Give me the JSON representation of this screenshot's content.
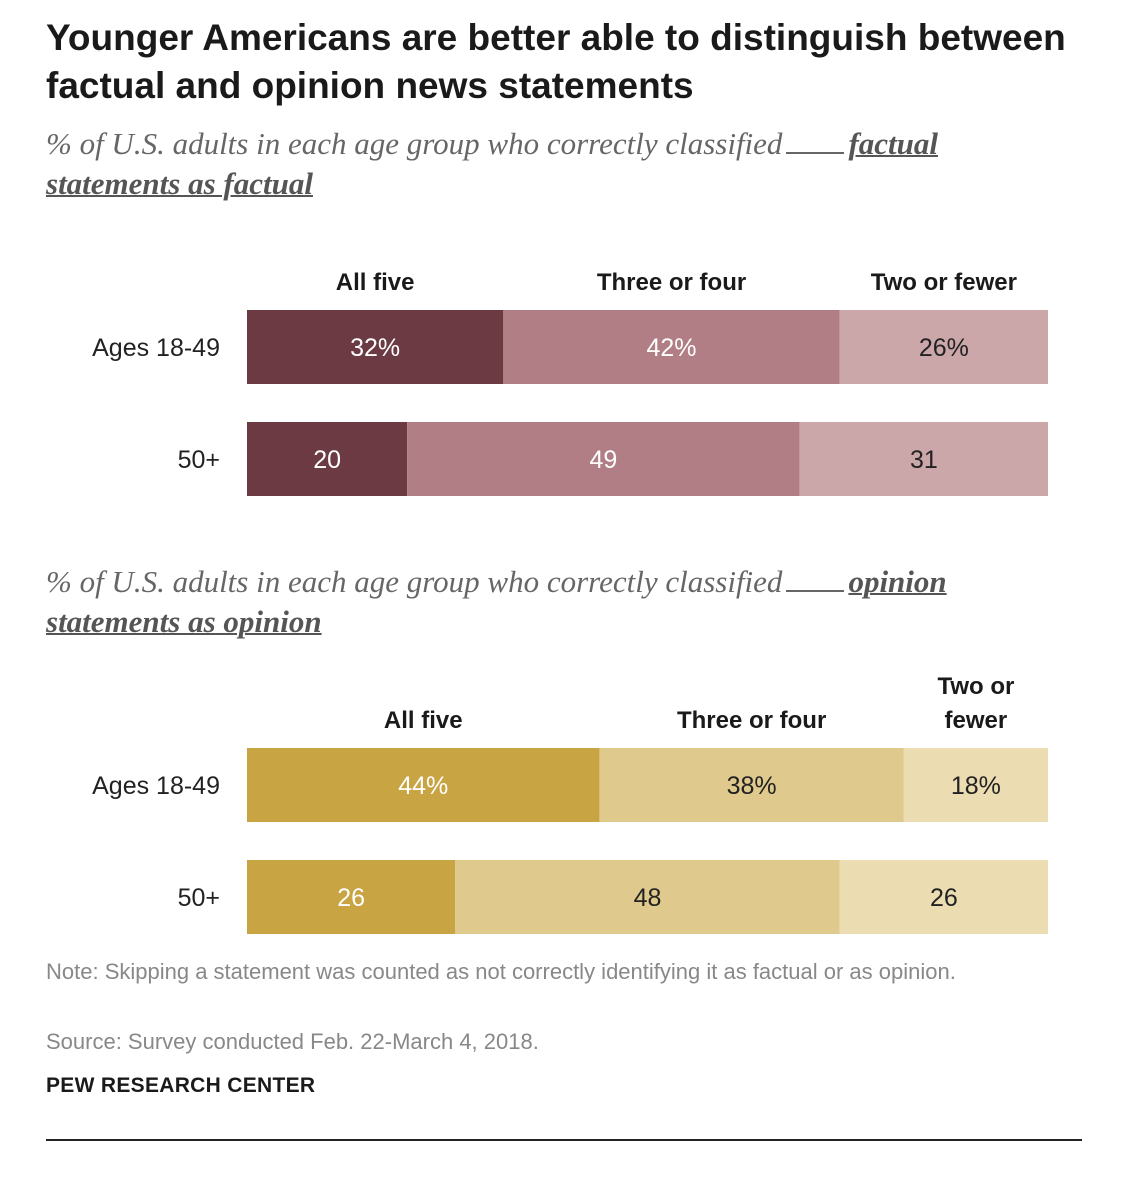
{
  "title": "Younger Americans are better able to distinguish between factual and opinion news statements",
  "panels": [
    {
      "subtitle_pre": "% of U.S. adults in each age group who correctly classified",
      "subtitle_emph": "factual statements as factual"
    },
    {
      "subtitle_pre": "% of U.S. adults in each age group who correctly classified",
      "subtitle_emph": "opinion statements as opinion"
    }
  ],
  "chart_data": [
    {
      "type": "bar",
      "stacked": true,
      "orientation": "horizontal",
      "categories": [
        "Ages 18-49",
        "50+"
      ],
      "series": [
        {
          "name": "All five",
          "values": [
            32,
            20
          ],
          "labels": [
            "32%",
            "20"
          ],
          "color": "#6b3a43",
          "label_color": "#ffffff"
        },
        {
          "name": "Three or four",
          "values": [
            42,
            49
          ],
          "labels": [
            "42%",
            "49"
          ],
          "color": "#b07e84",
          "label_color": "#ffffff"
        },
        {
          "name": "Two or fewer",
          "values": [
            26,
            31
          ],
          "labels": [
            "26%",
            "31"
          ],
          "color": "#cba7aa",
          "label_color": "#222222"
        }
      ],
      "xlim": [
        0,
        100
      ],
      "legend": "top"
    },
    {
      "type": "bar",
      "stacked": true,
      "orientation": "horizontal",
      "categories": [
        "Ages 18-49",
        "50+"
      ],
      "series": [
        {
          "name": "All five",
          "values": [
            44,
            26
          ],
          "labels": [
            "44%",
            "26"
          ],
          "color": "#c9a443",
          "label_color": "#ffffff"
        },
        {
          "name": "Three or four",
          "values": [
            38,
            48
          ],
          "labels": [
            "38%",
            "48"
          ],
          "color": "#dfc98d",
          "label_color": "#222222"
        },
        {
          "name": "Two or fewer",
          "values": [
            18,
            26
          ],
          "labels": [
            "18%",
            "26"
          ],
          "color": "#ebdcb1",
          "label_color": "#222222"
        }
      ],
      "xlim": [
        0,
        100
      ],
      "legend": "top"
    }
  ],
  "note": "Note: Skipping a statement was counted as not correctly identifying it as factual or as opinion.",
  "source": "Source: Survey conducted Feb. 22-March 4, 2018.",
  "brand": "PEW RESEARCH CENTER"
}
